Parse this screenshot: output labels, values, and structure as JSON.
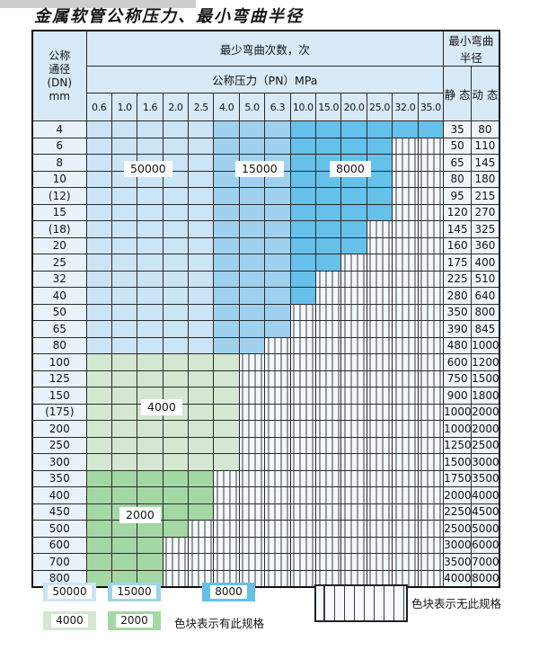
{
  "title": "金属软管公称压力、最小弯曲半径",
  "table": {
    "header": {
      "dn_lines": [
        "公称",
        "通径",
        "(DN)",
        "mm"
      ],
      "bend_cycles_label": "最少弯曲次数，次",
      "pressure_label": "公称压力（PN）MPa",
      "pressure_columns": [
        "0.6",
        "1.0",
        "1.6",
        "2.0",
        "2.5",
        "4.0",
        "5.0",
        "6.3",
        "10.0",
        "15.0",
        "20.0",
        "25.0",
        "32.0",
        "35.0"
      ],
      "radius_label": "最小弯曲半径",
      "static_label": "静 态",
      "dynamic_label": "动 态"
    },
    "column_bands": [
      {
        "cycles": "50000",
        "color": "#cbe4f6",
        "columns": [
          "0.6",
          "2.5"
        ]
      },
      {
        "cycles": "15000",
        "color": "#9fd1ef",
        "columns": [
          "4.0",
          "6.3"
        ]
      },
      {
        "cycles": "8000",
        "color": "#65c0ea",
        "columns": [
          "10.0",
          "35.0"
        ]
      }
    ],
    "green_regions": [
      {
        "cycles": "4000",
        "color": "#d3e7d1",
        "rows": [
          "100",
          "300"
        ]
      },
      {
        "cycles": "2000",
        "color": "#a3d7a4",
        "rows": [
          "350",
          "800"
        ]
      }
    ],
    "rows": [
      {
        "dn": "4",
        "max_pn": "35.0",
        "fill": "bands",
        "static": "35",
        "dynamic": "80"
      },
      {
        "dn": "6",
        "max_pn": "25.0",
        "fill": "bands",
        "static": "50",
        "dynamic": "110"
      },
      {
        "dn": "8",
        "max_pn": "25.0",
        "fill": "bands",
        "static": "65",
        "dynamic": "145"
      },
      {
        "dn": "10",
        "max_pn": "25.0",
        "fill": "bands",
        "static": "80",
        "dynamic": "180"
      },
      {
        "dn": "(12)",
        "max_pn": "25.0",
        "fill": "bands",
        "static": "95",
        "dynamic": "215"
      },
      {
        "dn": "15",
        "max_pn": "25.0",
        "fill": "bands",
        "static": "120",
        "dynamic": "270"
      },
      {
        "dn": "(18)",
        "max_pn": "20.0",
        "fill": "bands",
        "static": "145",
        "dynamic": "325"
      },
      {
        "dn": "20",
        "max_pn": "20.0",
        "fill": "bands",
        "static": "160",
        "dynamic": "360"
      },
      {
        "dn": "25",
        "max_pn": "15.0",
        "fill": "bands",
        "static": "175",
        "dynamic": "400"
      },
      {
        "dn": "32",
        "max_pn": "10.0",
        "fill": "bands",
        "static": "225",
        "dynamic": "510"
      },
      {
        "dn": "40",
        "max_pn": "10.0",
        "fill": "bands",
        "static": "280",
        "dynamic": "640"
      },
      {
        "dn": "50",
        "max_pn": "6.3",
        "fill": "bands",
        "static": "350",
        "dynamic": "800"
      },
      {
        "dn": "65",
        "max_pn": "6.3",
        "fill": "bands",
        "static": "390",
        "dynamic": "845"
      },
      {
        "dn": "80",
        "max_pn": "5.0",
        "fill": "bands",
        "static": "480",
        "dynamic": "1000"
      },
      {
        "dn": "100",
        "max_pn": "4.0",
        "fill": "4000",
        "static": "600",
        "dynamic": "1200"
      },
      {
        "dn": "125",
        "max_pn": "4.0",
        "fill": "4000",
        "static": "750",
        "dynamic": "1500"
      },
      {
        "dn": "150",
        "max_pn": "4.0",
        "fill": "4000",
        "static": "900",
        "dynamic": "1800"
      },
      {
        "dn": "(175)",
        "max_pn": "4.0",
        "fill": "4000",
        "static": "1000",
        "dynamic": "2000"
      },
      {
        "dn": "200",
        "max_pn": "4.0",
        "fill": "4000",
        "static": "1000",
        "dynamic": "2000"
      },
      {
        "dn": "250",
        "max_pn": "4.0",
        "fill": "4000",
        "static": "1250",
        "dynamic": "2500"
      },
      {
        "dn": "300",
        "max_pn": "4.0",
        "fill": "4000",
        "static": "1500",
        "dynamic": "3000"
      },
      {
        "dn": "350",
        "max_pn": "2.5",
        "fill": "2000",
        "static": "1750",
        "dynamic": "3500"
      },
      {
        "dn": "400",
        "max_pn": "2.5",
        "fill": "2000",
        "static": "2000",
        "dynamic": "4000"
      },
      {
        "dn": "450",
        "max_pn": "2.5",
        "fill": "2000",
        "static": "2250",
        "dynamic": "4500"
      },
      {
        "dn": "500",
        "max_pn": "2.0",
        "fill": "2000",
        "static": "2500",
        "dynamic": "5000"
      },
      {
        "dn": "600",
        "max_pn": "1.6",
        "fill": "2000",
        "static": "3000",
        "dynamic": "6000"
      },
      {
        "dn": "700",
        "max_pn": "1.6",
        "fill": "2000",
        "static": "3500",
        "dynamic": "7000"
      },
      {
        "dn": "800",
        "max_pn": "1.6",
        "fill": "2000",
        "static": "4000",
        "dynamic": "8000"
      }
    ]
  },
  "legend": {
    "no_spec_text": "色块表示无此规格",
    "has_spec_text": "色块表示有此规格"
  }
}
